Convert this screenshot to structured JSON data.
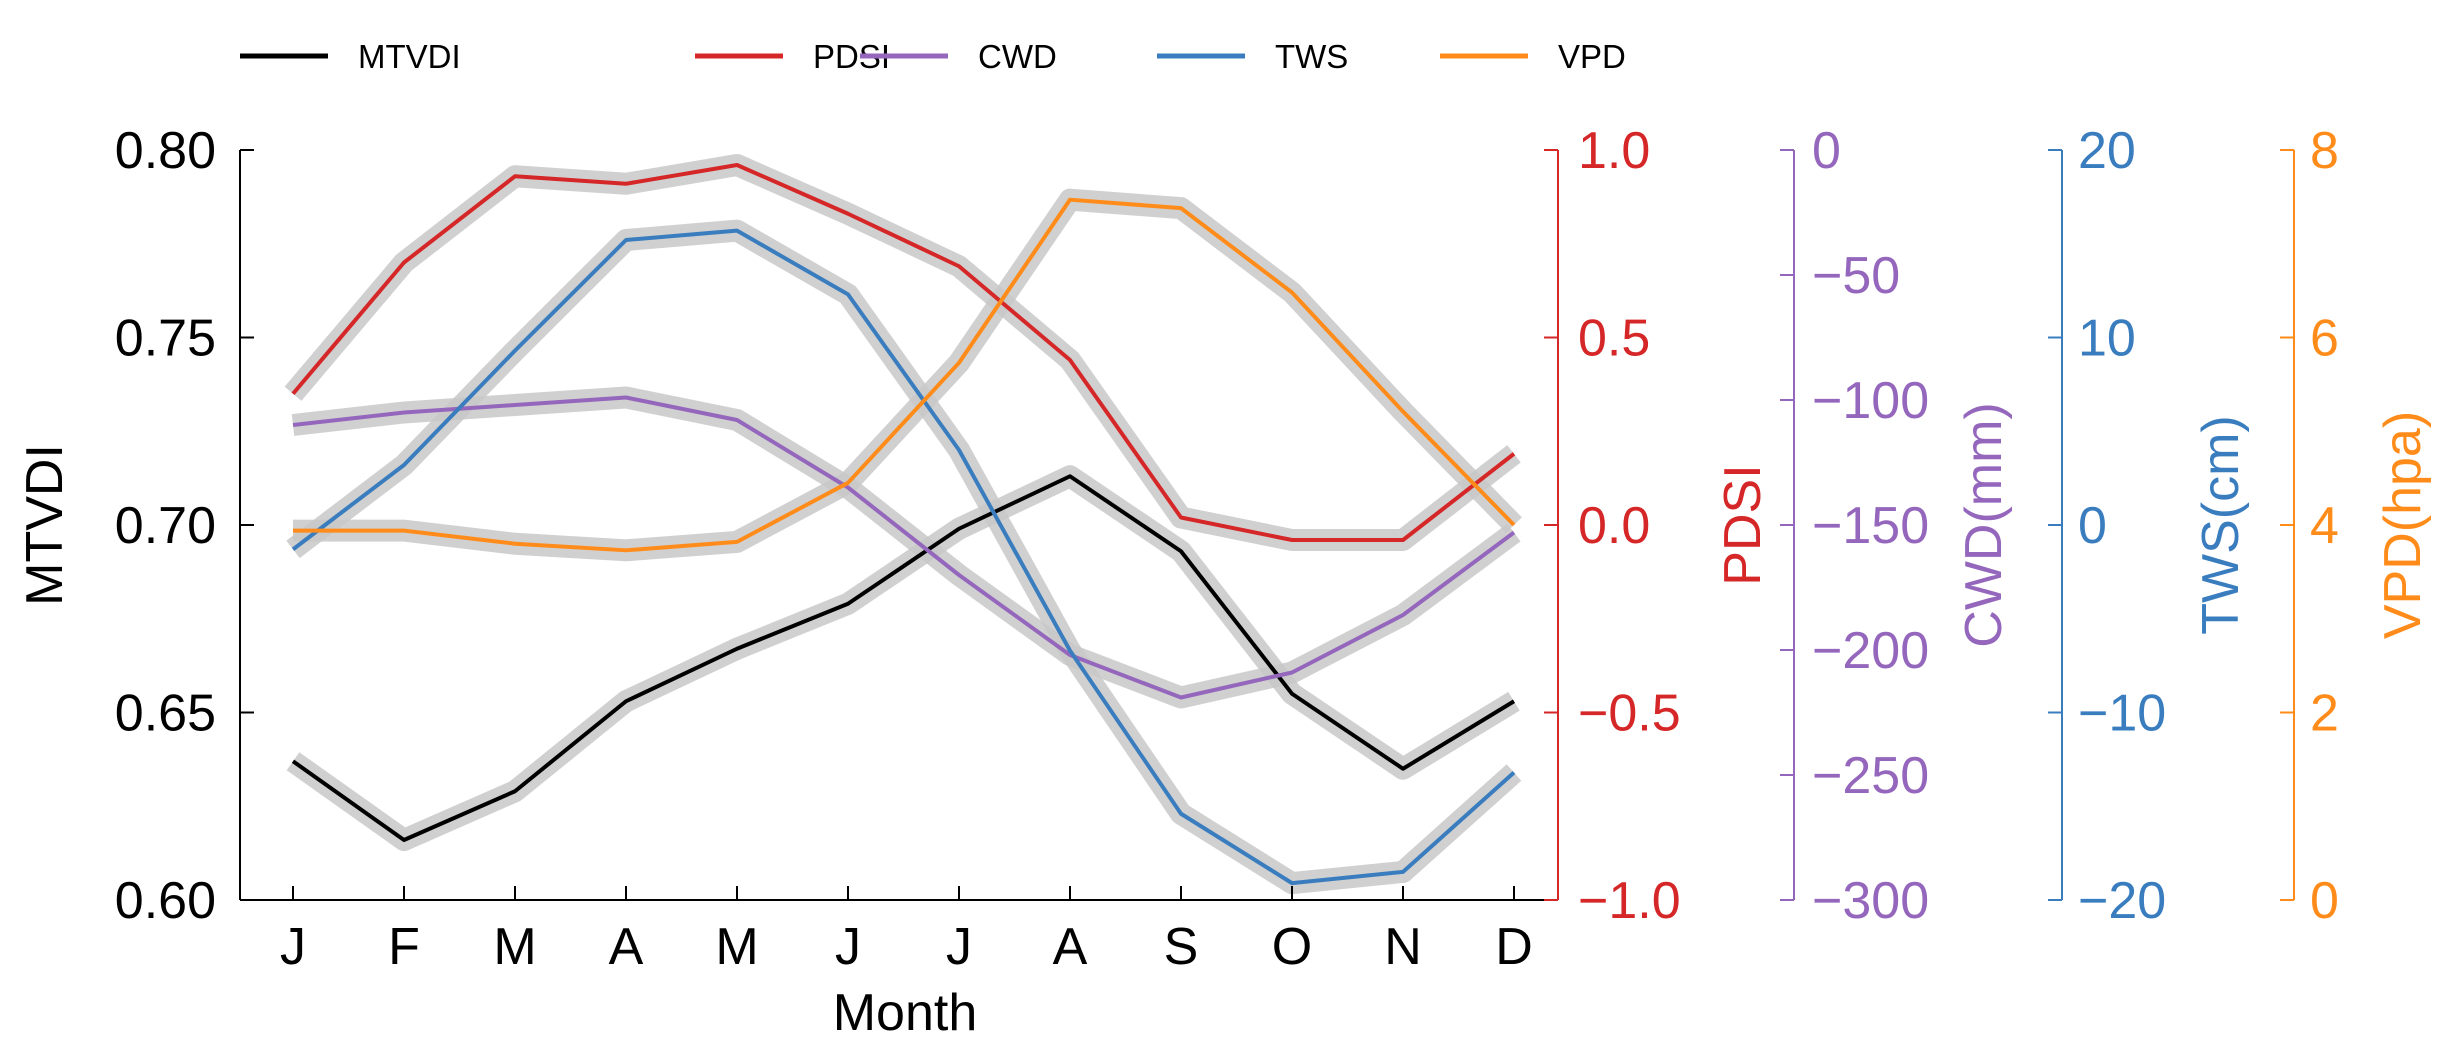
{
  "chart_data": {
    "type": "line",
    "categories": [
      "J",
      "F",
      "M",
      "A",
      "M",
      "J",
      "J",
      "A",
      "S",
      "O",
      "N",
      "D"
    ],
    "xlabel": "Month",
    "grid": false,
    "legend_position": "top",
    "series": [
      {
        "name": "MTVDI",
        "color": "#000000",
        "axis_label": "MTVDI",
        "ylim": [
          0.6,
          0.8
        ],
        "ticks": [
          "0.60",
          "0.65",
          "0.70",
          "0.75",
          "0.80"
        ],
        "values": [
          0.637,
          0.616,
          0.629,
          0.653,
          0.667,
          0.679,
          0.699,
          0.713,
          0.693,
          0.655,
          0.635,
          0.653
        ],
        "band": 0.0045
      },
      {
        "name": "PDSI",
        "color": "#d62728",
        "axis_label": "PDSI",
        "ylim": [
          -1.0,
          1.0
        ],
        "ticks": [
          "−1.0",
          "−0.5",
          "0.0",
          "0.5",
          "1.0"
        ],
        "values": [
          0.35,
          0.7,
          0.93,
          0.91,
          0.96,
          0.83,
          0.69,
          0.44,
          0.02,
          -0.04,
          -0.04,
          0.19
        ],
        "band": 0.04
      },
      {
        "name": "CWD",
        "color": "#9467bd",
        "axis_label": "CWD(mm)",
        "ylim": [
          -300,
          0
        ],
        "ticks": [
          "−300",
          "−250",
          "−200",
          "−150",
          "−100",
          "−50",
          "0"
        ],
        "values": [
          -110,
          -105,
          -102,
          -99,
          -108,
          -135,
          -170,
          -202,
          -219,
          -209,
          -186,
          -153
        ],
        "band": 7
      },
      {
        "name": "TWS",
        "color": "#3a7dbf",
        "axis_label": "TWS(cm)",
        "ylim": [
          -20,
          20
        ],
        "ticks": [
          "−20",
          "−10",
          "0",
          "10",
          "20"
        ],
        "values": [
          -1.3,
          3.2,
          9.3,
          15.2,
          15.7,
          12.3,
          4.0,
          -6.7,
          -15.4,
          -19.1,
          -18.5,
          -13.2
        ],
        "band": 0.5
      },
      {
        "name": "VPD",
        "color": "#ff8c1a",
        "axis_label": "VPD(hpa)",
        "ylim": [
          0,
          8
        ],
        "ticks": [
          "0",
          "2",
          "4",
          "6",
          "8"
        ],
        "values": [
          3.94,
          3.94,
          3.8,
          3.73,
          3.82,
          4.45,
          5.73,
          7.47,
          7.38,
          6.48,
          5.21,
          4.0
        ],
        "band": 0.12
      }
    ]
  }
}
